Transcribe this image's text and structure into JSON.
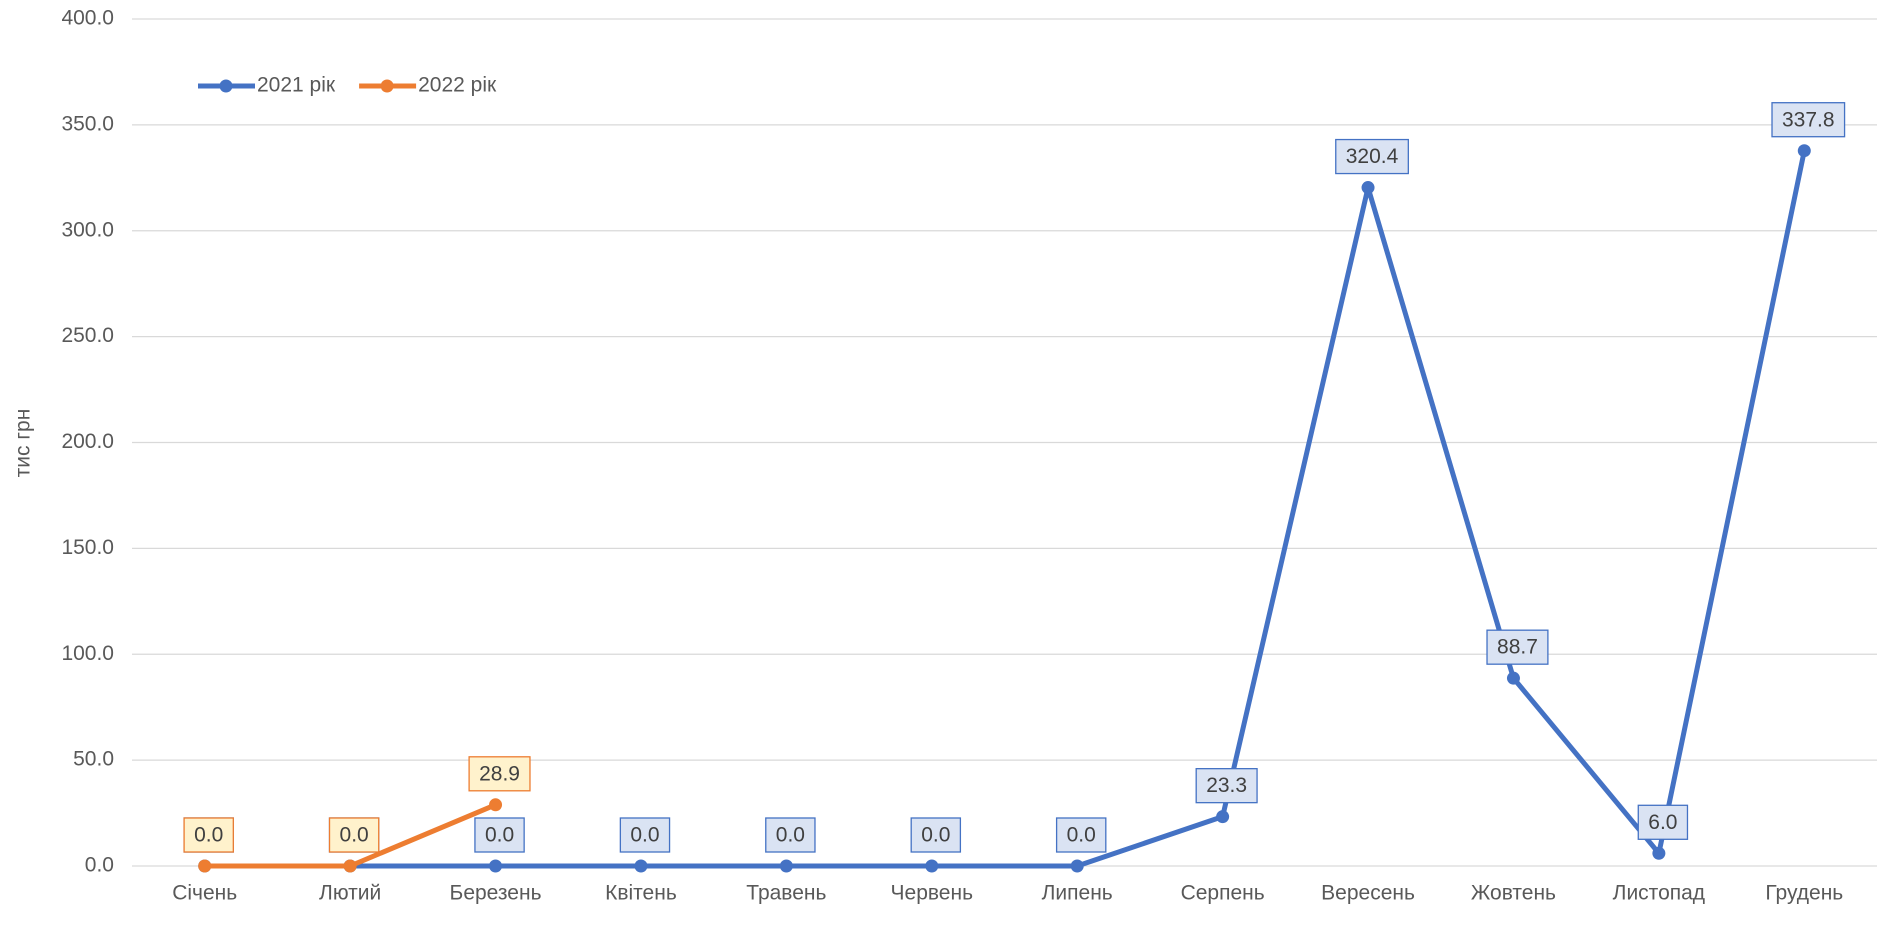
{
  "chart_data": {
    "type": "line",
    "y_axis_label": "тис грн",
    "categories": [
      "Січень",
      "Лютий",
      "Березень",
      "Квітень",
      "Травень",
      "Червень",
      "Липень",
      "Серпень",
      "Вересень",
      "Жовтень",
      "Листопад",
      "Грудень"
    ],
    "series": [
      {
        "name": "2021 рік",
        "color": "#4472c4",
        "label_fill": "#dae3f3",
        "values": [
          0,
          0,
          0,
          0,
          0,
          0,
          0,
          23.3,
          320.4,
          88.7,
          6,
          337.8
        ],
        "value_labels": [
          "0.0",
          "0.0",
          "0.0",
          "0.0",
          "0.0",
          "0.0",
          "0.0",
          "23.3",
          "320.4",
          "88.7",
          "6.0",
          "337.8"
        ]
      },
      {
        "name": "2022 рік",
        "color": "#ed7d31",
        "label_fill": "#fff2cc",
        "values": [
          0,
          0,
          28.9,
          null,
          null,
          null,
          null,
          null,
          null,
          null,
          null,
          null
        ],
        "value_labels": [
          "0.0",
          "0.0",
          "28.9",
          null,
          null,
          null,
          null,
          null,
          null,
          null,
          null,
          null
        ]
      }
    ],
    "ylim": [
      0,
      400
    ],
    "yticks": [
      {
        "value": 0,
        "label": "0.0"
      },
      {
        "value": 50,
        "label": "50.0"
      },
      {
        "value": 100,
        "label": "100.0"
      },
      {
        "value": 150,
        "label": "150.0"
      },
      {
        "value": 200,
        "label": "200.0"
      },
      {
        "value": 250,
        "label": "250.0"
      },
      {
        "value": 300,
        "label": "300.0"
      },
      {
        "value": 350,
        "label": "350.0"
      },
      {
        "value": 400,
        "label": "400.0"
      }
    ],
    "grid": true,
    "legend": "top-left"
  }
}
